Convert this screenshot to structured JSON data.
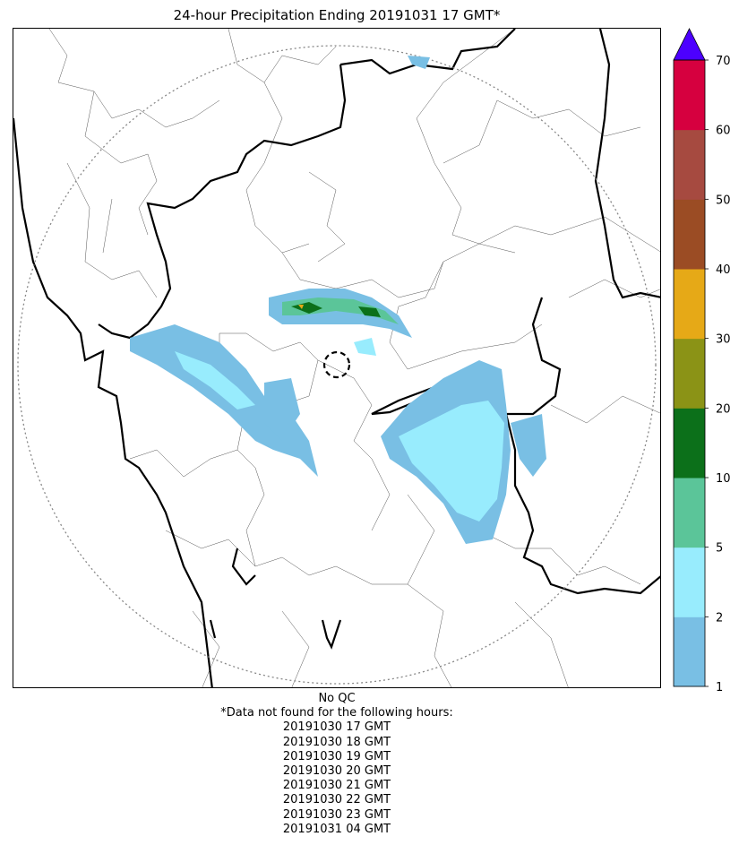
{
  "title": "24-hour Precipitation Ending 20191031 17 GMT*",
  "colorbar": {
    "ticks": [
      "1",
      "2",
      "5",
      "10",
      "20",
      "30",
      "40",
      "50",
      "60",
      "70"
    ],
    "colors": [
      "#79bfe4",
      "#98ecfd",
      "#5bc599",
      "#0c701a",
      "#8b9316",
      "#e6a917",
      "#9b4c24",
      "#a64a40",
      "#d6003f"
    ],
    "extend_color": "#4c00ff"
  },
  "footer": {
    "qc": "No QC",
    "missing_heading": "*Data not found for the following hours:",
    "missing_hours": [
      "20191030 17 GMT",
      "20191030 18 GMT",
      "20191030 19 GMT",
      "20191030 20 GMT",
      "20191030 21 GMT",
      "20191030 22 GMT",
      "20191030 23 GMT",
      "20191031 04 GMT"
    ]
  }
}
